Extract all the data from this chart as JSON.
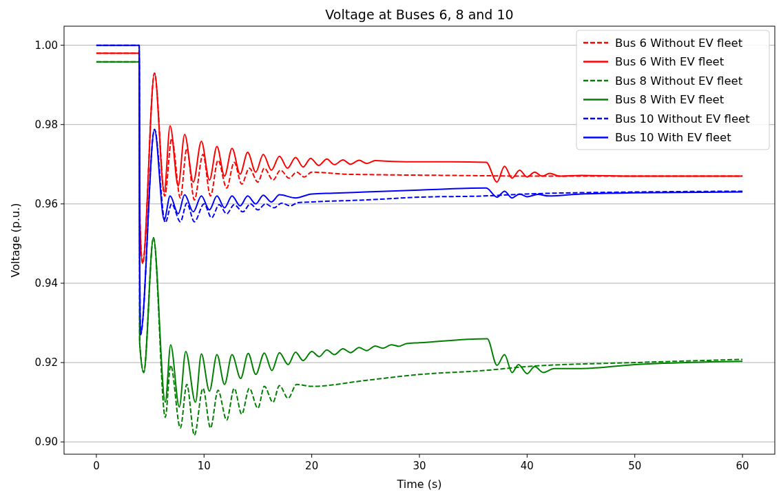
{
  "chart_data": {
    "type": "line",
    "title": "Voltage at Buses 6, 8 and 10",
    "xlabel": "Time (s)",
    "ylabel": "Voltage (p.u.)",
    "xlim": [
      -3,
      63
    ],
    "ylim": [
      0.8969,
      1.0048
    ],
    "xticks": [
      0,
      10,
      20,
      30,
      40,
      50,
      60
    ],
    "yticks": [
      {
        "value": 0.9,
        "label": "0.90"
      },
      {
        "value": 0.92,
        "label": "0.92"
      },
      {
        "value": 0.94,
        "label": "0.94"
      },
      {
        "value": 0.96,
        "label": "0.96"
      },
      {
        "value": 0.98,
        "label": "0.98"
      },
      {
        "value": 1.0,
        "label": "1.00"
      }
    ],
    "grid": "y",
    "legend": "top right",
    "series": [
      {
        "name": "Bus 6 Without EV fleet",
        "color": "#ff0000",
        "line_style": "dashed",
        "x": [
          0,
          3.98,
          4.05,
          4.3,
          5.4,
          6.35,
          7.0,
          7.8,
          8.4,
          9.1,
          9.9,
          10.6,
          11.3,
          12.1,
          12.8,
          13.5,
          14.2,
          15.0,
          15.6,
          16.4,
          17.1,
          17.9,
          18.6,
          19.3,
          20,
          21.5,
          23,
          25,
          28,
          32,
          36,
          40,
          50,
          60
        ],
        "values": [
          0.998,
          0.998,
          0.955,
          0.945,
          0.993,
          0.962,
          0.9765,
          0.9615,
          0.974,
          0.961,
          0.9725,
          0.962,
          0.971,
          0.964,
          0.9705,
          0.965,
          0.969,
          0.9655,
          0.969,
          0.966,
          0.9685,
          0.9665,
          0.968,
          0.9668,
          0.968,
          0.9678,
          0.9675,
          0.9674,
          0.9673,
          0.9672,
          0.9671,
          0.967,
          0.967,
          0.967
        ]
      },
      {
        "name": "Bus 6 With EV fleet",
        "color": "#ff0000",
        "line_style": "solid",
        "x": [
          0,
          3.98,
          4.05,
          4.3,
          5.4,
          6.3,
          6.85,
          7.6,
          8.2,
          9.0,
          9.75,
          10.5,
          11.2,
          11.9,
          12.6,
          13.35,
          14.05,
          14.8,
          15.5,
          16.25,
          17.0,
          17.75,
          18.5,
          19.2,
          19.9,
          20.65,
          21.4,
          22.1,
          22.9,
          23.6,
          24.4,
          25.1,
          25.9,
          27.5,
          30,
          33,
          36.2,
          37.2,
          37.9,
          38.6,
          39.3,
          40,
          40.7,
          41.4,
          42.1,
          43,
          45,
          50,
          60
        ],
        "values": [
          0.998,
          0.998,
          0.955,
          0.945,
          0.993,
          0.963,
          0.9797,
          0.9645,
          0.9775,
          0.9655,
          0.9758,
          0.966,
          0.9745,
          0.967,
          0.974,
          0.9675,
          0.973,
          0.968,
          0.9725,
          0.9685,
          0.972,
          0.969,
          0.9717,
          0.9693,
          0.9715,
          0.9697,
          0.9713,
          0.9699,
          0.9711,
          0.97,
          0.971,
          0.9702,
          0.9709,
          0.9707,
          0.9706,
          0.9706,
          0.9705,
          0.9655,
          0.9695,
          0.9665,
          0.9685,
          0.9668,
          0.968,
          0.967,
          0.9677,
          0.967,
          0.9672,
          0.967,
          0.967
        ]
      },
      {
        "name": "Bus 8 Without EV fleet",
        "color": "#008000",
        "line_style": "dashed",
        "x": [
          0,
          3.98,
          4.02,
          4.4,
          5.3,
          6.4,
          6.9,
          7.8,
          8.4,
          9.1,
          9.9,
          10.6,
          11.3,
          12.1,
          12.8,
          13.5,
          14.2,
          15,
          15.6,
          16.4,
          17,
          17.8,
          18.6,
          20,
          25,
          30,
          36,
          40,
          50,
          60
        ],
        "values": [
          0.9958,
          0.9958,
          0.925,
          0.9175,
          0.9515,
          0.9062,
          0.9193,
          0.9035,
          0.9145,
          0.9017,
          0.9135,
          0.9035,
          0.913,
          0.9055,
          0.9135,
          0.907,
          0.9135,
          0.9085,
          0.914,
          0.91,
          0.9142,
          0.911,
          0.9145,
          0.914,
          0.9155,
          0.917,
          0.918,
          0.919,
          0.92,
          0.9208
        ]
      },
      {
        "name": "Bus 8 With EV fleet",
        "color": "#008000",
        "line_style": "solid",
        "x": [
          0,
          3.98,
          4.02,
          4.4,
          5.3,
          6.4,
          6.9,
          7.7,
          8.3,
          9.2,
          9.75,
          10.5,
          11.2,
          11.9,
          12.6,
          13.4,
          14.1,
          14.8,
          15.6,
          16.3,
          17.0,
          17.8,
          18.5,
          19.2,
          20,
          20.7,
          21.4,
          22.1,
          22.9,
          23.6,
          24.4,
          25.1,
          25.9,
          26.6,
          27.4,
          28.1,
          28.8,
          30,
          36.3,
          37.2,
          37.9,
          38.6,
          39.2,
          40,
          40.7,
          41.5,
          42.5,
          45,
          50,
          60
        ],
        "values": [
          0.9958,
          0.9958,
          0.925,
          0.9175,
          0.9515,
          0.91,
          0.9245,
          0.9088,
          0.9228,
          0.91,
          0.9222,
          0.9128,
          0.922,
          0.9145,
          0.922,
          0.916,
          0.9223,
          0.917,
          0.9224,
          0.918,
          0.9225,
          0.9195,
          0.9226,
          0.9205,
          0.9228,
          0.9215,
          0.9232,
          0.922,
          0.9235,
          0.9225,
          0.9238,
          0.923,
          0.9242,
          0.9236,
          0.9245,
          0.9241,
          0.9248,
          0.925,
          0.926,
          0.9193,
          0.922,
          0.9175,
          0.9195,
          0.9172,
          0.919,
          0.9175,
          0.9185,
          0.9185,
          0.9195,
          0.9203
        ]
      },
      {
        "name": "Bus 10 Without EV fleet",
        "color": "#0000ff",
        "line_style": "dashed",
        "x": [
          0,
          3.98,
          4.02,
          4.1,
          5.4,
          6.4,
          7.0,
          7.8,
          8.4,
          9.1,
          10.0,
          10.7,
          11.4,
          12.1,
          12.8,
          13.6,
          14.3,
          15,
          15.7,
          16.5,
          17.2,
          18,
          18.7,
          20,
          25,
          30,
          36,
          40,
          50,
          60
        ],
        "values": [
          1.0,
          1.0,
          0.95,
          0.927,
          0.9788,
          0.9553,
          0.96,
          0.9555,
          0.9602,
          0.9555,
          0.96,
          0.9565,
          0.9598,
          0.9575,
          0.9598,
          0.958,
          0.96,
          0.9585,
          0.96,
          0.959,
          0.9602,
          0.9595,
          0.9603,
          0.9605,
          0.961,
          0.9617,
          0.962,
          0.9625,
          0.963,
          0.9632
        ]
      },
      {
        "name": "Bus 10 With EV fleet",
        "color": "#0000ff",
        "line_style": "solid",
        "x": [
          0,
          3.98,
          4.02,
          4.1,
          5.4,
          6.3,
          6.85,
          7.6,
          8.2,
          9.0,
          9.75,
          10.5,
          11.2,
          11.9,
          12.6,
          13.35,
          14.05,
          14.8,
          15.5,
          16.25,
          17.0,
          18.5,
          20,
          22,
          25,
          30,
          36.2,
          37.2,
          37.9,
          38.6,
          39.3,
          40,
          41,
          42,
          45,
          50,
          60
        ],
        "values": [
          1.0,
          1.0,
          0.95,
          0.927,
          0.9788,
          0.956,
          0.962,
          0.9575,
          0.9623,
          0.958,
          0.962,
          0.9585,
          0.962,
          0.959,
          0.962,
          0.9595,
          0.962,
          0.96,
          0.9622,
          0.9605,
          0.9623,
          0.9615,
          0.9625,
          0.9627,
          0.963,
          0.9635,
          0.964,
          0.9617,
          0.9632,
          0.9615,
          0.9625,
          0.9618,
          0.9624,
          0.962,
          0.9625,
          0.9628,
          0.963
        ]
      }
    ]
  }
}
